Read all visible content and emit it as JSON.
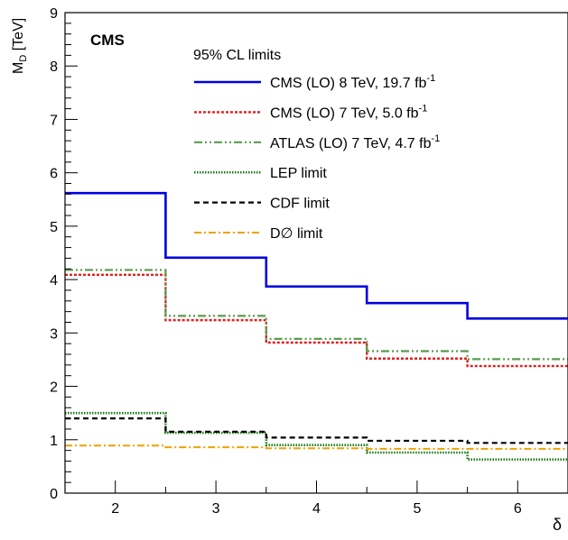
{
  "chart_data": {
    "type": "line",
    "step": true,
    "experiment_label": "CMS",
    "legend_title": "95% CL limits",
    "legend_position": "top-right",
    "xlabel": "δ",
    "ylabel_main": "M",
    "ylabel_sub": "D",
    "ylabel_unit": "[TeV]",
    "xlim": [
      1.5,
      6.5
    ],
    "ylim": [
      0,
      9
    ],
    "xticks": [
      2,
      3,
      4,
      5,
      6
    ],
    "yticks": [
      0,
      1,
      2,
      3,
      4,
      5,
      6,
      7,
      8,
      9
    ],
    "grid": false,
    "x_bin_edges": [
      1.5,
      2.5,
      3.5,
      4.5,
      5.5,
      6.5
    ],
    "series": [
      {
        "name": "CMS (LO) 8 TeV, 19.7 fb",
        "name_sup": "-1",
        "color": "#0000dd",
        "dash": "solid",
        "values": [
          5.62,
          4.41,
          3.87,
          3.56,
          3.27
        ]
      },
      {
        "name": "CMS (LO) 7 TeV, 5.0 fb",
        "name_sup": "-1",
        "color": "#e02020",
        "dash": "dotted",
        "values": [
          4.09,
          3.24,
          2.82,
          2.52,
          2.38
        ]
      },
      {
        "name": "ATLAS (LO) 7 TeV, 4.7 fb",
        "name_sup": "-1",
        "color": "#5a9a50",
        "dash": "dashdotdot",
        "values": [
          4.18,
          3.32,
          2.89,
          2.66,
          2.51
        ]
      },
      {
        "name": "LEP limit",
        "name_sup": "",
        "color": "#1a7a1a",
        "dash": "finedot",
        "values": [
          1.5,
          1.13,
          0.9,
          0.76,
          0.63
        ]
      },
      {
        "name": "CDF limit",
        "name_sup": "",
        "color": "#000000",
        "dash": "dashed",
        "values": [
          1.4,
          1.15,
          1.04,
          0.98,
          0.94
        ]
      },
      {
        "name": "D∅ limit",
        "name_sup": "",
        "color": "#f0a000",
        "dash": "dashdot",
        "values": [
          0.89,
          0.86,
          0.84,
          0.83,
          0.83
        ]
      }
    ]
  }
}
